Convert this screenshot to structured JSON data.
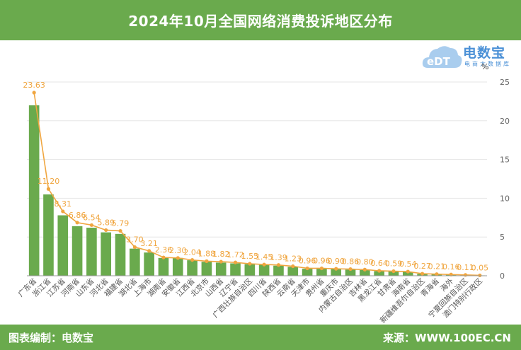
{
  "header": {
    "title": "2024年10月全国网络消费投诉地区分布"
  },
  "logo": {
    "brand": "电数宝",
    "subtitle": "电商大数据库",
    "mark": "eDT"
  },
  "footer": {
    "editor": "图表编制：电数宝",
    "source": "来源：WWW.100EC.CN"
  },
  "chart_data": {
    "type": "bar",
    "unit": "%",
    "categories": [
      "广东省",
      "浙江省",
      "江苏省",
      "河南省",
      "山东省",
      "河北省",
      "福建省",
      "湖北省",
      "上海市",
      "湖南省",
      "安徽省",
      "江西省",
      "北京市",
      "山西省",
      "辽宁省",
      "广西壮族自治区",
      "四川省",
      "陕西省",
      "云南省",
      "天津市",
      "贵州省",
      "重庆市",
      "内蒙古自治区",
      "吉林省",
      "黑龙江省",
      "甘肃省",
      "海南省",
      "新疆维吾尔自治区",
      "青海省",
      "海外",
      "宁夏回族自治区",
      "澳门特别行政区"
    ],
    "series": [
      {
        "type": "bar",
        "values": [
          22.0,
          10.5,
          7.8,
          6.4,
          6.2,
          5.6,
          5.4,
          3.5,
          3.0,
          2.3,
          2.3,
          2.0,
          1.8,
          1.7,
          1.6,
          1.5,
          1.4,
          1.3,
          1.15,
          0.9,
          0.9,
          0.9,
          0.8,
          0.75,
          0.6,
          0.55,
          0.5,
          0.25,
          0.2,
          0.15,
          0.1,
          0.05
        ]
      },
      {
        "type": "line",
        "values": [
          23.63,
          11.2,
          8.31,
          6.86,
          6.54,
          5.89,
          5.79,
          3.7,
          3.21,
          2.36,
          2.3,
          2.04,
          1.88,
          1.82,
          1.72,
          1.55,
          1.45,
          1.39,
          1.23,
          0.96,
          0.96,
          0.9,
          0.86,
          0.8,
          0.64,
          0.59,
          0.54,
          0.27,
          0.21,
          0.16,
          0.11,
          0.05
        ],
        "labels": [
          "23.63",
          "11.20",
          "8.31",
          "6.86",
          "6.54",
          "5.89",
          "5.79",
          "3.70",
          "3.21",
          "2.36",
          "2.30",
          "2.04",
          "1.88",
          "1.82",
          "1.72",
          "1.55",
          "1.45",
          "1.39",
          "1.23",
          "0.96",
          "0.96",
          "0.90",
          "0.86",
          "0.80",
          "0.64",
          "0.59",
          "0.54",
          "0.27",
          "0.21",
          "0.16",
          "0.11",
          "0.05"
        ]
      }
    ],
    "ylim": [
      0,
      25
    ],
    "yticks": [
      "0",
      "5",
      "10",
      "15",
      "20",
      "25"
    ],
    "y_axis_side": "right",
    "grid": true,
    "colors": {
      "bar": "#6aaa4d",
      "line": "#f0a640",
      "grid": "#e6e6e6",
      "header": "#6aaa4d",
      "brand": "#4a90d6"
    }
  }
}
